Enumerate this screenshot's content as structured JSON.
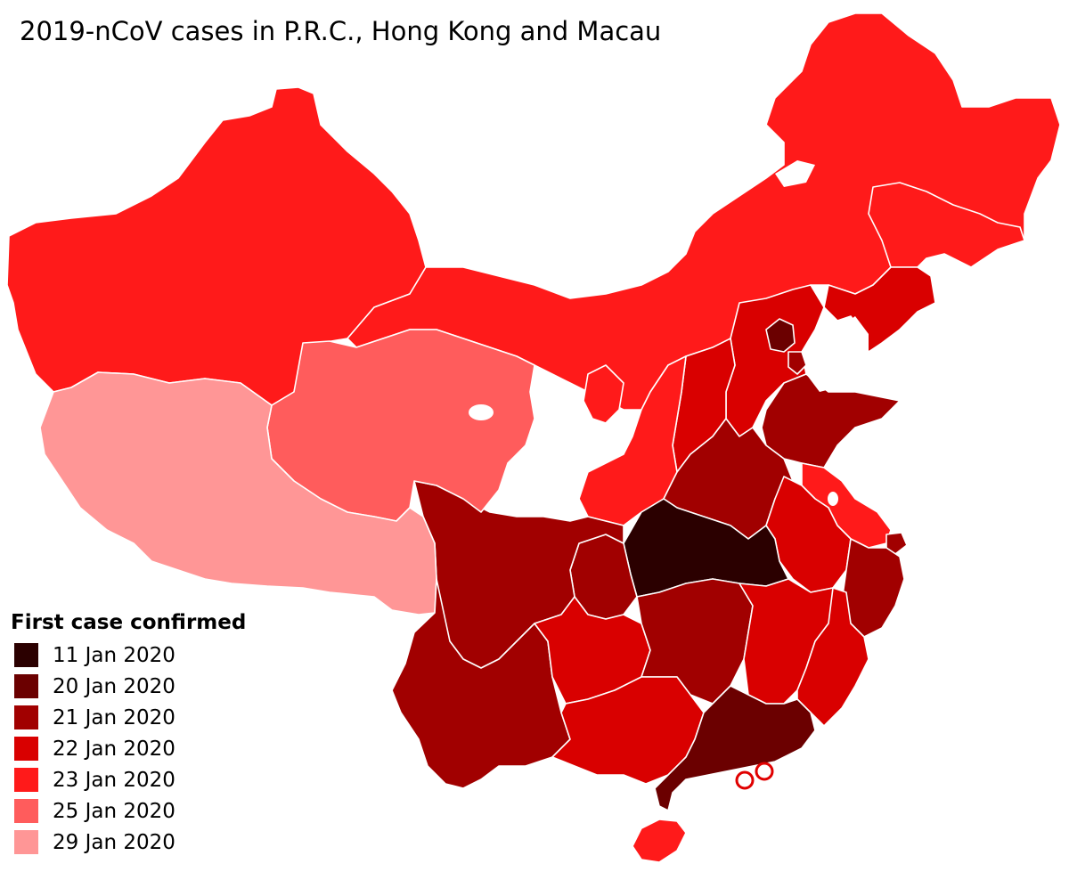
{
  "title": "2019-nCoV cases in P.R.C., Hong Kong and Macau",
  "legend": {
    "title": "First case confirmed",
    "items": [
      {
        "label": "11 Jan 2020",
        "color": "#2b0000"
      },
      {
        "label": "20 Jan 2020",
        "color": "#6b0000"
      },
      {
        "label": "21 Jan 2020",
        "color": "#a10000"
      },
      {
        "label": "22 Jan 2020",
        "color": "#d90000"
      },
      {
        "label": "23 Jan 2020",
        "color": "#ff1a1a"
      },
      {
        "label": "25 Jan 2020",
        "color": "#ff5c5c"
      },
      {
        "label": "29 Jan 2020",
        "color": "#ff9696"
      }
    ]
  },
  "colors": {
    "lake": "#ffffff",
    "border": "#ffffff",
    "sar_marker": "#e00000"
  }
}
